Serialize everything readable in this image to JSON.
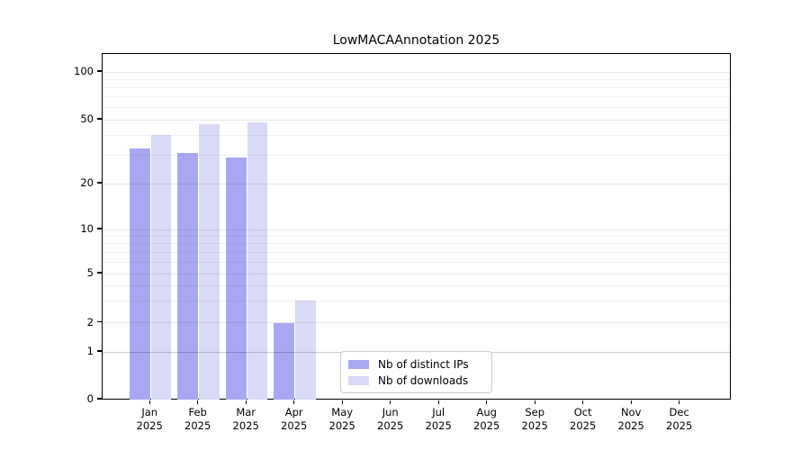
{
  "title": "LowMACAAnnotation 2025",
  "chart_data": {
    "type": "bar",
    "title": "LowMACAAnnotation 2025",
    "categories": [
      "Jan",
      "Feb",
      "Mar",
      "Apr",
      "May",
      "Jun",
      "Jul",
      "Aug",
      "Sep",
      "Oct",
      "Nov",
      "Dec"
    ],
    "year_label": "2025",
    "series": [
      {
        "name": "Nb of distinct IPs",
        "color": "#a8a8f2",
        "values": [
          33,
          31,
          29,
          2,
          0,
          0,
          0,
          0,
          0,
          0,
          0,
          0
        ]
      },
      {
        "name": "Nb of downloads",
        "color": "#d9d9f8",
        "values": [
          40,
          47,
          48,
          3,
          0,
          0,
          0,
          0,
          0,
          0,
          0,
          0
        ]
      }
    ],
    "y_scale": "symlog",
    "y_ticks": [
      0,
      1,
      2,
      5,
      10,
      20,
      50,
      100
    ],
    "y_minor_ticks": [
      3,
      4,
      6,
      7,
      8,
      9,
      30,
      40,
      60,
      70,
      80,
      90
    ],
    "ylim": [
      0,
      130
    ],
    "grid": "horizontal",
    "legend_position": "lower-center-inside"
  },
  "legend": {
    "items": [
      {
        "label": "Nb of distinct IPs",
        "color": "#a8a8f2"
      },
      {
        "label": "Nb of downloads",
        "color": "#d9d9f8"
      }
    ]
  }
}
